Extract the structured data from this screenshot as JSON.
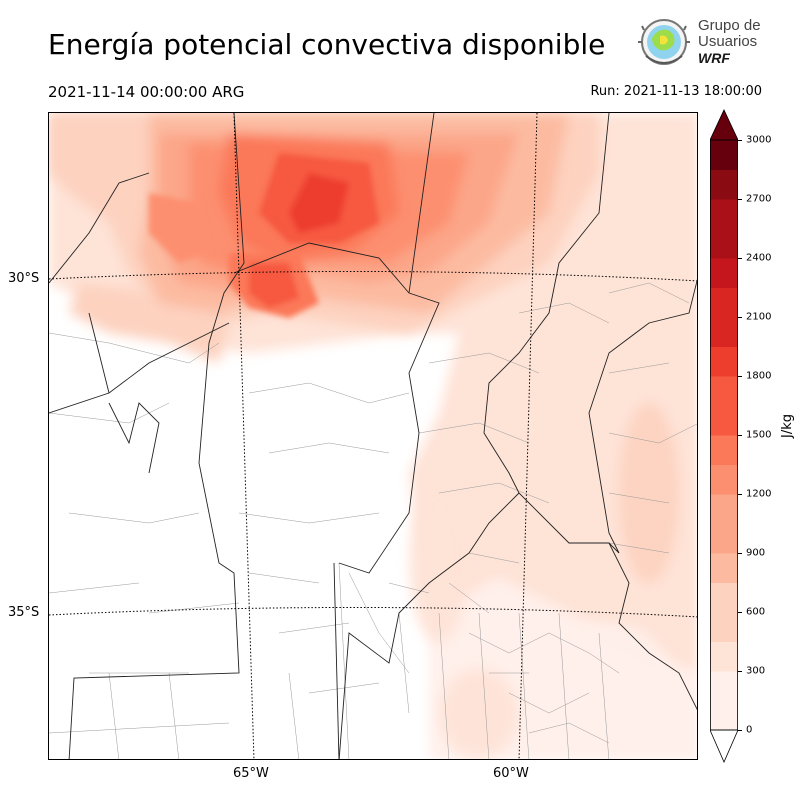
{
  "title": "Energía potencial convectiva disponible",
  "valid_time": "2021-11-14 00:00:00 ARG",
  "run_time": "Run: 2021-11-13 18:00:00",
  "logo": {
    "line1": "Grupo de",
    "line2": "Usuarios",
    "line3": "WRF"
  },
  "map": {
    "variable": "CAPE",
    "lat_labels": [
      "30°S",
      "35°S"
    ],
    "lon_labels": [
      "65°W",
      "60°W"
    ]
  },
  "colorbar": {
    "unit": "J/kg",
    "ticks": [
      "0",
      "300",
      "600",
      "900",
      "1200",
      "1500",
      "1800",
      "2100",
      "2400",
      "2700",
      "3000"
    ],
    "levels": [
      0,
      150,
      300,
      450,
      600,
      750,
      900,
      1050,
      1200,
      1350,
      1500,
      1650,
      1800,
      1950,
      2100,
      2250,
      2400,
      2550,
      2700,
      2850,
      3000
    ],
    "colors": [
      "#fff0eb",
      "#fee3d7",
      "#fdd2bf",
      "#fcbba1",
      "#fca689",
      "#fc8f6f",
      "#fb7858",
      "#f6593f",
      "#ed3d2d",
      "#d92623",
      "#c4161c",
      "#a91017",
      "#8b0b12",
      "#67000d"
    ],
    "extend": "both"
  }
}
